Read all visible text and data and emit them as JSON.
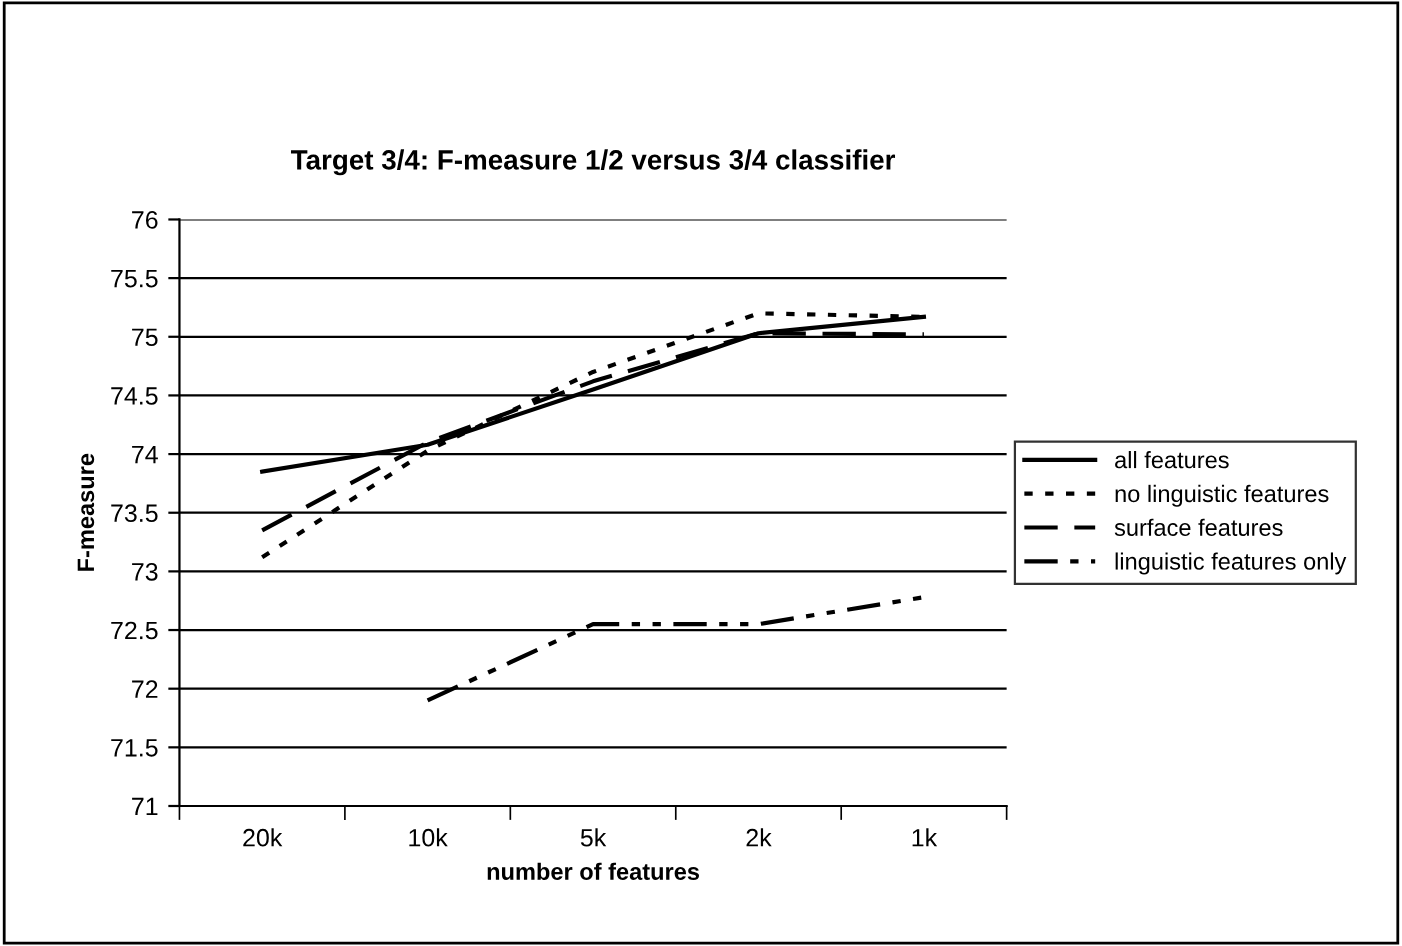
{
  "chart_data": {
    "type": "line",
    "title": "Target 3/4: F-measure 1/2 versus 3/4 classifier",
    "xlabel": "number of features",
    "ylabel": "F-measure",
    "categories": [
      "20k",
      "10k",
      "5k",
      "2k",
      "1k"
    ],
    "series": [
      {
        "name": "all features",
        "color": "#000000",
        "line_style": "solid",
        "values": [
          73.85,
          74.08,
          74.55,
          75.03,
          75.17
        ]
      },
      {
        "name": "no linguistic features",
        "color": "#000000",
        "line_style": "dotted",
        "values": [
          73.12,
          74.03,
          74.7,
          75.2,
          75.17
        ]
      },
      {
        "name": "surface features",
        "color": "#000000",
        "line_style": "dashed",
        "values": [
          73.35,
          74.1,
          74.62,
          75.03,
          75.02
        ]
      },
      {
        "name": "linguistic features only",
        "color": "#000000",
        "line_style": "dashdot",
        "values": [
          null,
          71.9,
          72.55,
          72.55,
          72.78
        ]
      }
    ],
    "ylim": [
      71,
      76
    ],
    "yticks": [
      71,
      71.5,
      72,
      72.5,
      73,
      73.5,
      74,
      74.5,
      75,
      75.5,
      76
    ],
    "grid": "y",
    "legend": "right",
    "marker": "none"
  }
}
